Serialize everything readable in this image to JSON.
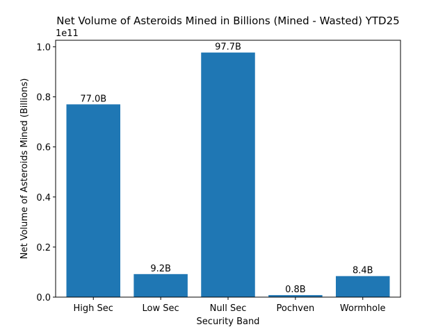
{
  "chart_data": {
    "type": "bar",
    "title": "Net Volume of Asteroids Mined in Billions (Mined - Wasted) YTD25",
    "xlabel": "Security Band",
    "ylabel": "Net Volume of Asteroids Mined (Billions)",
    "axis_offset_label": "1e11",
    "categories": [
      "High Sec",
      "Low Sec",
      "Null Sec",
      "Pochven",
      "Wormhole"
    ],
    "values": [
      77000000000,
      9200000000,
      97700000000,
      800000000,
      8400000000
    ],
    "data_labels": [
      "77.0B",
      "9.2B",
      "97.7B",
      "0.8B",
      "8.4B"
    ],
    "ylim": [
      0,
      102600000000
    ],
    "yticks": [
      0,
      20000000000,
      40000000000,
      60000000000,
      80000000000,
      100000000000
    ],
    "ytick_labels": [
      "0.0",
      "0.2",
      "0.4",
      "0.6",
      "0.8",
      "1.0"
    ],
    "grid": false,
    "legend": "none",
    "bar_color": "#1f77b4"
  }
}
